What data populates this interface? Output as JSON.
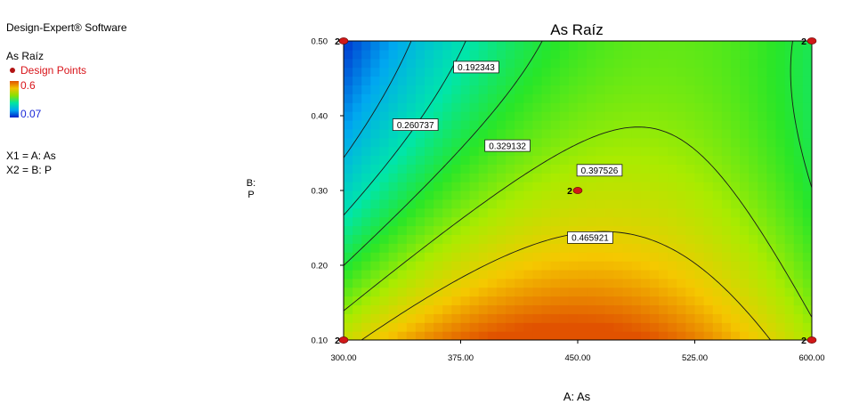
{
  "legend": {
    "software": "Design-Expert® Software",
    "response_name": "As Raíz",
    "design_points_label": "Design Points",
    "high_value": "0.6",
    "low_value": "0.07",
    "x1_label": "X1 = A: As",
    "x2_label": "X2 = B: P",
    "high_color": "#d8141a",
    "low_color": "#1a28d8"
  },
  "chart_data": {
    "type": "contour",
    "title": "As Raíz",
    "xlabel": "A: As",
    "ylabel": "B: P",
    "xlim": [
      300,
      600
    ],
    "ylim": [
      0.1,
      0.5
    ],
    "x_ticks": [
      "300.00",
      "375.00",
      "450.00",
      "525.00",
      "600.00"
    ],
    "y_ticks": [
      "0.10",
      "0.20",
      "0.30",
      "0.40",
      "0.50"
    ],
    "x_tick_values": [
      300,
      375,
      450,
      525,
      600
    ],
    "y_tick_values": [
      0.1,
      0.2,
      0.3,
      0.4,
      0.5
    ],
    "color_range": [
      0.07,
      0.6
    ],
    "contour_levels": [
      {
        "value": 0.192343,
        "label": "0.192343",
        "label_at": [
          385,
          0.465
        ]
      },
      {
        "value": 0.260737,
        "label": "0.260737",
        "label_at": [
          346,
          0.388
        ]
      },
      {
        "value": 0.329132,
        "label": "0.329132",
        "label_at": [
          405,
          0.36
        ]
      },
      {
        "value": 0.397526,
        "label": "0.397526",
        "label_at": [
          464,
          0.327
        ]
      },
      {
        "value": 0.465921,
        "label": "0.465921",
        "label_at": [
          458,
          0.237
        ]
      }
    ],
    "design_points": [
      {
        "x": 300,
        "y": 0.5,
        "count": "2"
      },
      {
        "x": 600,
        "y": 0.5,
        "count": "2"
      },
      {
        "x": 450,
        "y": 0.3,
        "count": "2"
      },
      {
        "x": 300,
        "y": 0.1,
        "count": "2"
      },
      {
        "x": 600,
        "y": 0.1,
        "count": "2"
      }
    ],
    "point_color": "#d01818"
  }
}
